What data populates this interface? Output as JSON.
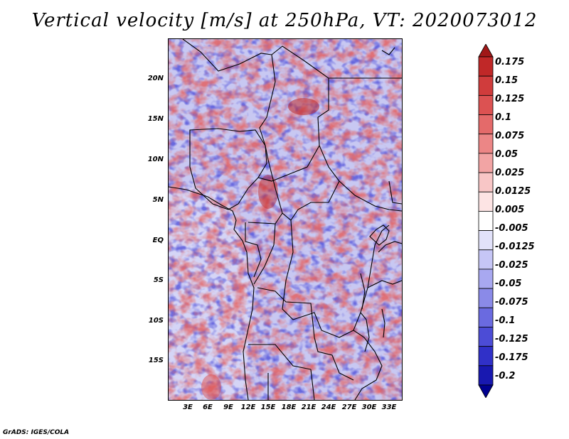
{
  "title": "Vertical velocity [m/s] at 250hPa, VT: 2020073012",
  "credit": "GrADS: IGES/COLA",
  "map": {
    "lat_labels": [
      "20N",
      "15N",
      "10N",
      "5N",
      "EQ",
      "5S",
      "10S",
      "15S"
    ],
    "lon_labels": [
      "3E",
      "6E",
      "9E",
      "12E",
      "15E",
      "18E",
      "21E",
      "24E",
      "27E",
      "30E",
      "33E"
    ]
  },
  "colorbar": {
    "labels": [
      "0.175",
      "0.15",
      "0.125",
      "0.1",
      "0.075",
      "0.05",
      "0.025",
      "0.0125",
      "0.005",
      "-0.005",
      "-0.0125",
      "-0.025",
      "-0.05",
      "-0.075",
      "-0.1",
      "-0.125",
      "-0.175",
      "-0.2"
    ],
    "colors": [
      "#a01818",
      "#c02828",
      "#d03c3c",
      "#dc5252",
      "#e46a6a",
      "#ec8686",
      "#f2a4a4",
      "#f8c6c6",
      "#fde4e4",
      "#ffffff",
      "#e2e2fa",
      "#c6c6f6",
      "#a8a8f0",
      "#8a8ae8",
      "#6a6ae0",
      "#4c4cd6",
      "#3030c8",
      "#1818b0",
      "#000090"
    ]
  },
  "colors": {
    "positive": "#e05050",
    "negative": "#5a5ae0",
    "boundary": "#000000"
  }
}
